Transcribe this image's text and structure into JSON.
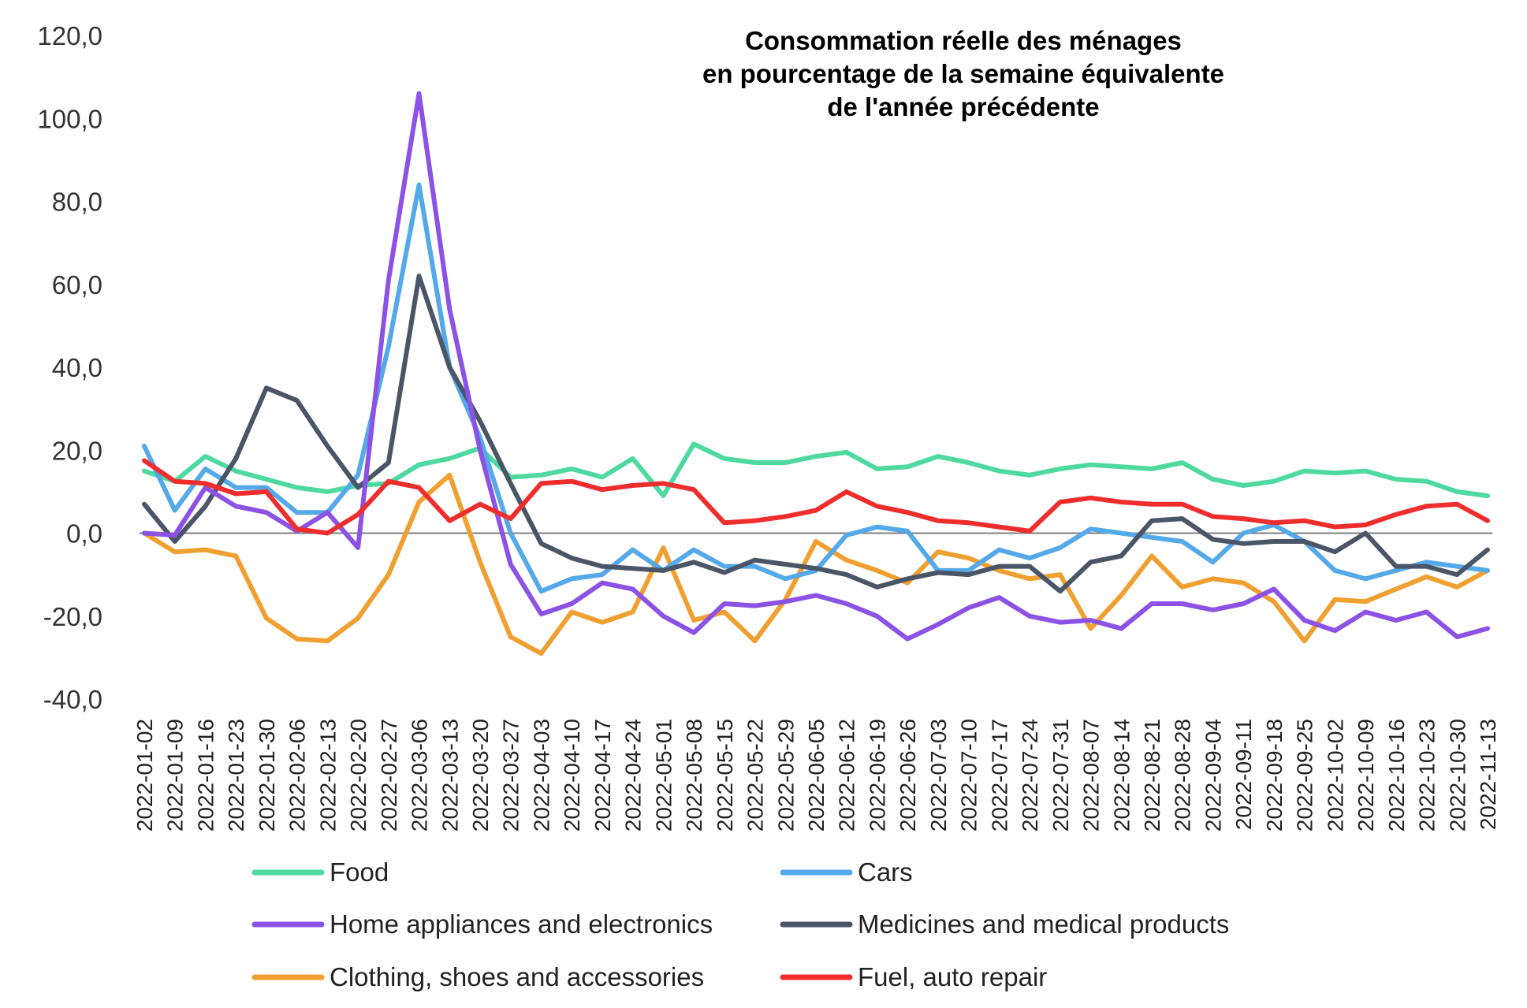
{
  "chart_data": {
    "type": "line",
    "title": [
      "Consommation réelle des ménages",
      "en pourcentage de la semaine équivalente",
      "de l'année précédente"
    ],
    "xlabel": "",
    "ylabel": "",
    "ylim": [
      -40,
      120
    ],
    "yticks": [
      "120,0",
      "100,0",
      "80,0",
      "60,0",
      "40,0",
      "20,0",
      "0,0",
      "-20,0",
      "-40,0"
    ],
    "ytick_values": [
      120,
      100,
      80,
      60,
      40,
      20,
      0,
      -20,
      -40
    ],
    "grid": false,
    "zero_line": true,
    "legend_position": "bottom",
    "categories": [
      "2022-01-02",
      "2022-01-09",
      "2022-01-16",
      "2022-01-23",
      "2022-01-30",
      "2022-02-06",
      "2022-02-13",
      "2022-02-20",
      "2022-02-27",
      "2022-03-06",
      "2022-03-13",
      "2022-03-20",
      "2022-03-27",
      "2022-04-03",
      "2022-04-10",
      "2022-04-17",
      "2022-04-24",
      "2022-05-01",
      "2022-05-08",
      "2022-05-15",
      "2022-05-22",
      "2022-05-29",
      "2022-06-05",
      "2022-06-12",
      "2022-06-19",
      "2022-06-26",
      "2022-07-03",
      "2022-07-10",
      "2022-07-17",
      "2022-07-24",
      "2022-07-31",
      "2022-08-07",
      "2022-08-14",
      "2022-08-21",
      "2022-08-28",
      "2022-09-04",
      "2022-09-11",
      "2022-09-18",
      "2022-09-25",
      "2022-10-02",
      "2022-10-09",
      "2022-10-16",
      "2022-10-23",
      "2022-10-30",
      "2022-11-13"
    ],
    "series": [
      {
        "name": "Food",
        "color": "#4dd9a0",
        "values": [
          15,
          12.5,
          18.5,
          15,
          13,
          11,
          10,
          11.5,
          12,
          16.5,
          18,
          20.5,
          13.5,
          14,
          15.5,
          13.5,
          18,
          9,
          21.5,
          18,
          17,
          17,
          18.5,
          19.5,
          15.5,
          16,
          18.5,
          17,
          15,
          14,
          15.5,
          16.5,
          16,
          15.5,
          17,
          13,
          11.5,
          12.5,
          15,
          14.5,
          15,
          13,
          12.5,
          10,
          9
        ]
      },
      {
        "name": "Cars",
        "color": "#54a9e8",
        "values": [
          21,
          5.5,
          15.5,
          11,
          11,
          5,
          5,
          14,
          45,
          84,
          40,
          23,
          0,
          -14,
          -11,
          -10,
          -4,
          -9,
          -4,
          -8,
          -8,
          -11,
          -9,
          -0.5,
          1.5,
          0.5,
          -9,
          -9,
          -4,
          -6,
          -3.5,
          1,
          0,
          -1,
          -2,
          -7,
          0,
          2,
          -2,
          -9,
          -11,
          -9,
          -7,
          -8,
          -9
        ]
      },
      {
        "name": "Home appliances and electronics",
        "color": "#8c52e6",
        "values": [
          0,
          -0.5,
          11,
          6.5,
          5,
          0.5,
          5,
          -3.5,
          61,
          106,
          54,
          20,
          -7.5,
          -19.5,
          -17,
          -12,
          -13.5,
          -20,
          -24,
          -17,
          -17.5,
          -16.5,
          -15,
          -17,
          -20,
          -25.5,
          -22,
          -18,
          -15.5,
          -20,
          -21.5,
          -21,
          -23,
          -17,
          -17,
          -18.5,
          -17,
          -13.5,
          -21,
          -23.5,
          -19,
          -21,
          -19,
          -25,
          -23
        ]
      },
      {
        "name": "Medicines and medical products",
        "color": "#4a5568",
        "values": [
          7,
          -2,
          6.5,
          18,
          35,
          32,
          21,
          11,
          17,
          62,
          40,
          27,
          12,
          -2.5,
          -6,
          -8,
          -8.5,
          -9,
          -7,
          -9.5,
          -6.5,
          -7.5,
          -8.5,
          -10,
          -13,
          -11,
          -9.5,
          -10,
          -8,
          -8,
          -14,
          -7,
          -5.5,
          3,
          3.5,
          -1.5,
          -2.5,
          -2,
          -2,
          -4.5,
          0,
          -8,
          -8,
          -10,
          -4
        ]
      },
      {
        "name": "Clothing, shoes and accessories",
        "color": "#f0a030",
        "values": [
          0,
          -4.5,
          -4,
          -5.5,
          -20.5,
          -25.5,
          -26,
          -20.5,
          -10,
          7.5,
          14,
          -7,
          -25,
          -29,
          -19,
          -21.5,
          -19,
          -3.5,
          -21,
          -19,
          -26,
          -16,
          -2,
          -6.5,
          -9,
          -12,
          -4.5,
          -6,
          -9,
          -11,
          -10,
          -23,
          -15,
          -5.5,
          -13,
          -11,
          -12,
          -16.5,
          -26,
          -16,
          -16.5,
          -13.5,
          -10.5,
          -13,
          -9
        ]
      },
      {
        "name": "Fuel, auto repair",
        "color": "#ef2d2d",
        "values": [
          17.5,
          12.5,
          12,
          9.5,
          10,
          1,
          0,
          4.5,
          12.5,
          11,
          3,
          7,
          3.5,
          12,
          12.5,
          10.5,
          11.5,
          12,
          10.5,
          2.5,
          3,
          4,
          5.5,
          10,
          6.5,
          5,
          3,
          2.5,
          1.5,
          0.5,
          7.5,
          8.5,
          7.5,
          7,
          7,
          4,
          3.5,
          2.5,
          3,
          1.5,
          2,
          4.5,
          6.5,
          7,
          3
        ]
      }
    ]
  }
}
